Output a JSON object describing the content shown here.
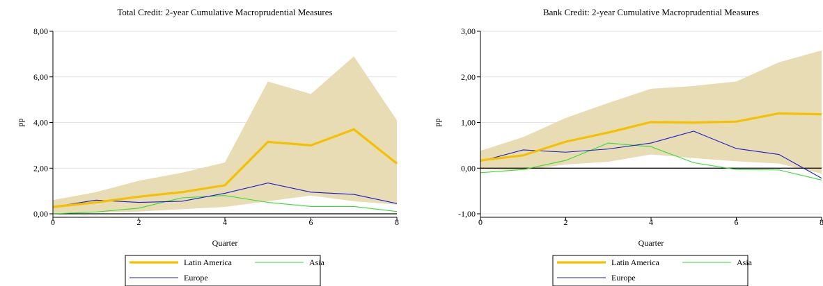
{
  "chart_data": [
    {
      "type": "line",
      "title": "Total Credit: 2-year Cumulative Macroprudential Measures",
      "xlabel": "Quarter",
      "ylabel": "pp",
      "xlim": [
        0,
        8
      ],
      "ylim": [
        0,
        8
      ],
      "x_ticks": [
        "0",
        "2",
        "4",
        "6",
        "8"
      ],
      "y_ticks": [
        "0,00",
        "2,00",
        "4,00",
        "6,00",
        "8,00"
      ],
      "x": [
        0,
        1,
        2,
        3,
        4,
        5,
        6,
        7,
        8
      ],
      "band": {
        "lower": [
          0.0,
          0.05,
          0.1,
          0.2,
          0.3,
          0.55,
          0.8,
          0.55,
          0.4
        ],
        "upper": [
          0.6,
          0.95,
          1.45,
          1.8,
          2.25,
          5.8,
          5.25,
          6.9,
          4.1
        ]
      },
      "series": [
        {
          "name": "Latin America",
          "values": [
            0.3,
            0.5,
            0.75,
            0.95,
            1.25,
            3.15,
            3.0,
            3.7,
            2.2
          ]
        },
        {
          "name": "Asia",
          "values": [
            0.0,
            0.08,
            0.25,
            0.7,
            0.8,
            0.5,
            0.32,
            0.32,
            0.1
          ]
        },
        {
          "name": "Europe",
          "values": [
            0.3,
            0.6,
            0.5,
            0.55,
            0.9,
            1.35,
            0.95,
            0.85,
            0.45
          ]
        }
      ],
      "zero_line": true,
      "grid": "horizontal",
      "legend_position": "bottom"
    },
    {
      "type": "line",
      "title": "Bank Credit: 2-year Cumulative Macroprudential Measures",
      "xlabel": "Quarter",
      "ylabel": "pp",
      "xlim": [
        0,
        8
      ],
      "ylim": [
        -1,
        3
      ],
      "x_ticks": [
        "0",
        "2",
        "4",
        "6",
        "8"
      ],
      "y_ticks": [
        "-1,00",
        "0,00",
        "1,00",
        "2,00",
        "3,00"
      ],
      "x": [
        0,
        1,
        2,
        3,
        4,
        5,
        6,
        7,
        8
      ],
      "band": {
        "lower": [
          -0.02,
          -0.05,
          0.08,
          0.14,
          0.3,
          0.22,
          0.15,
          0.1,
          -0.12
        ],
        "upper": [
          0.38,
          0.68,
          1.1,
          1.43,
          1.74,
          1.8,
          1.9,
          2.32,
          2.58
        ]
      },
      "series": [
        {
          "name": "Latin America",
          "values": [
            0.17,
            0.28,
            0.58,
            0.78,
            1.01,
            1.0,
            1.02,
            1.2,
            1.18
          ]
        },
        {
          "name": "Asia",
          "values": [
            -0.1,
            -0.03,
            0.17,
            0.55,
            0.47,
            0.12,
            -0.03,
            -0.04,
            -0.26
          ]
        },
        {
          "name": "Europe",
          "values": [
            0.15,
            0.4,
            0.35,
            0.42,
            0.55,
            0.81,
            0.43,
            0.3,
            -0.22
          ]
        }
      ],
      "zero_line": true,
      "grid": "horizontal",
      "legend_position": "bottom"
    }
  ],
  "colors": {
    "band": "#e8dcb4",
    "grid": "#e3e3e3",
    "Latin America": "#f5c000",
    "Asia": "#33dd33",
    "Europe": "#1a1acc",
    "zero_line": "#000000"
  }
}
